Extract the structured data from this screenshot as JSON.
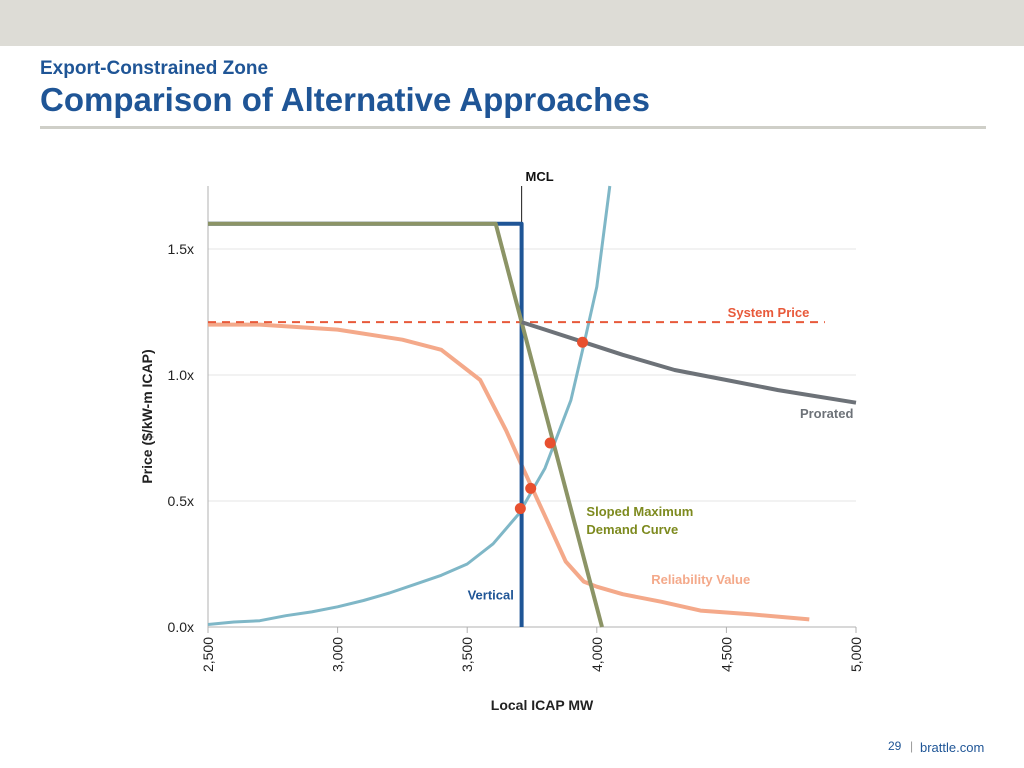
{
  "slide": {
    "subtitle": "Export-Constrained Zone",
    "title": "Comparison of Alternative Approaches",
    "page_number": "29",
    "separator": "|",
    "site": "brattle.com"
  },
  "chart_data": {
    "type": "line",
    "title": "",
    "xlabel": "Local ICAP MW",
    "ylabel": "Price ($/kW-m ICAP)",
    "xlim": [
      2500,
      5000
    ],
    "ylim": [
      0,
      1.75
    ],
    "xticks": [
      2500,
      3000,
      3500,
      4000,
      4500,
      5000
    ],
    "xtick_labels": [
      "2,500",
      "3,000",
      "3,500",
      "4,000",
      "4,500",
      "5,000"
    ],
    "yticks": [
      0,
      0.5,
      1.0,
      1.5
    ],
    "ytick_labels": [
      "0.0x",
      "0.5x",
      "1.0x",
      "1.5x"
    ],
    "grid": true,
    "mcl": {
      "x": 3710,
      "label": "MCL"
    },
    "series": [
      {
        "name": "Reliability Value",
        "color": "#f4a98a",
        "width": 4,
        "dash": "",
        "x": [
          2500,
          2700,
          3000,
          3250,
          3400,
          3550,
          3650,
          3720,
          3800,
          3880,
          3950,
          4000,
          4100,
          4250,
          4400,
          4600,
          4820
        ],
        "y": [
          1.2,
          1.2,
          1.18,
          1.14,
          1.1,
          0.98,
          0.78,
          0.62,
          0.44,
          0.26,
          0.18,
          0.16,
          0.13,
          0.1,
          0.065,
          0.05,
          0.03
        ]
      },
      {
        "name": "",
        "color": "#7fb7c7",
        "width": 3,
        "dash": "",
        "x": [
          2500,
          2600,
          2700,
          2800,
          2900,
          3000,
          3100,
          3200,
          3300,
          3400,
          3500,
          3600,
          3700,
          3800,
          3900,
          3950,
          4000,
          4050
        ],
        "y": [
          0.01,
          0.02,
          0.025,
          0.045,
          0.06,
          0.08,
          0.105,
          0.135,
          0.17,
          0.205,
          0.25,
          0.33,
          0.45,
          0.63,
          0.9,
          1.12,
          1.35,
          1.75
        ]
      },
      {
        "name": "System Price",
        "color": "#e8593a",
        "width": 2,
        "dash": "8,6",
        "x": [
          2500,
          4880
        ],
        "y": [
          1.21,
          1.21
        ]
      },
      {
        "name": "Vertical",
        "color": "#1f5596",
        "width": 4,
        "dash": "",
        "x": [
          2500,
          3710,
          3710
        ],
        "y": [
          1.6,
          1.6,
          0
        ]
      },
      {
        "name": "Sloped Maximum Demand Curve",
        "color": "#8c9466",
        "width": 4,
        "dash": "",
        "x": [
          2500,
          3610,
          3710,
          4020
        ],
        "y": [
          1.6,
          1.6,
          1.21,
          0
        ]
      },
      {
        "name": "Prorated",
        "color": "#6d7278",
        "width": 4,
        "dash": "",
        "x": [
          3710,
          3800,
          3950,
          4100,
          4300,
          4500,
          4700,
          5000
        ],
        "y": [
          1.21,
          1.18,
          1.13,
          1.08,
          1.02,
          0.98,
          0.94,
          0.89
        ]
      }
    ],
    "points": [
      {
        "x": 3945,
        "y": 1.13
      },
      {
        "x": 3820,
        "y": 0.73
      },
      {
        "x": 3745,
        "y": 0.55
      },
      {
        "x": 3705,
        "y": 0.47
      }
    ],
    "point_color": "#e8502f",
    "annotations": [
      {
        "text": "System Price",
        "color": "#e8593a",
        "x": 4820,
        "y": 1.23,
        "anchor": "end"
      },
      {
        "text": "Prorated",
        "color": "#6d7278",
        "x": 4990,
        "y": 0.83,
        "anchor": "end"
      },
      {
        "text": "Sloped Maximum",
        "color": "#7d8a1e",
        "x": 3960,
        "y": 0.44,
        "anchor": "start"
      },
      {
        "text": "Demand Curve",
        "color": "#7d8a1e",
        "x": 3960,
        "y": 0.37,
        "anchor": "start"
      },
      {
        "text": "Reliability Value",
        "color": "#f4a98a",
        "x": 4210,
        "y": 0.17,
        "anchor": "start"
      },
      {
        "text": "Vertical",
        "color": "#1f5596",
        "x": 3680,
        "y": 0.11,
        "anchor": "end"
      }
    ]
  }
}
